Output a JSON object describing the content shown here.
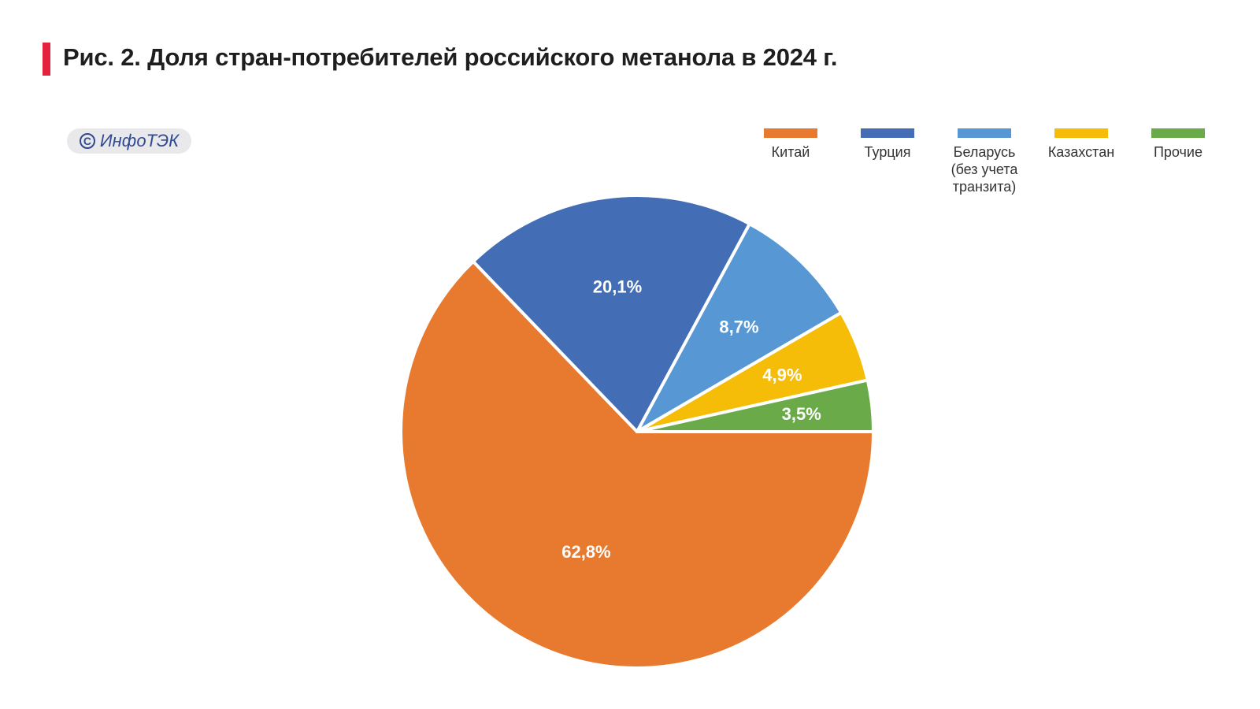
{
  "title": "Рис. 2. Доля стран-потребителей российского метанола в 2024 г.",
  "badge": {
    "text": "ИнфоТЭК",
    "icon": "copyright-icon"
  },
  "chart_data": {
    "type": "pie",
    "title": "Рис. 2. Доля стран-потребителей российского метанола в 2024 г.",
    "unit": "%",
    "legend_position": "top-right",
    "start_angle": "3 o'clock, counterclockwise",
    "slices": [
      {
        "label": "Китай",
        "value": 62.8,
        "display": "62,8%",
        "color": "#e87a2f"
      },
      {
        "label": "Турция",
        "value": 20.1,
        "display": "20,1%",
        "color": "#436db5"
      },
      {
        "label": "Беларусь\n(без учета\nтранзита)",
        "value": 8.7,
        "display": "8,7%",
        "color": "#5797d4"
      },
      {
        "label": "Казахстан",
        "value": 4.9,
        "display": "4,9%",
        "color": "#f6bd08"
      },
      {
        "label": "Прочие",
        "value": 3.5,
        "display": "3,5%",
        "color": "#6aaa49"
      }
    ]
  }
}
